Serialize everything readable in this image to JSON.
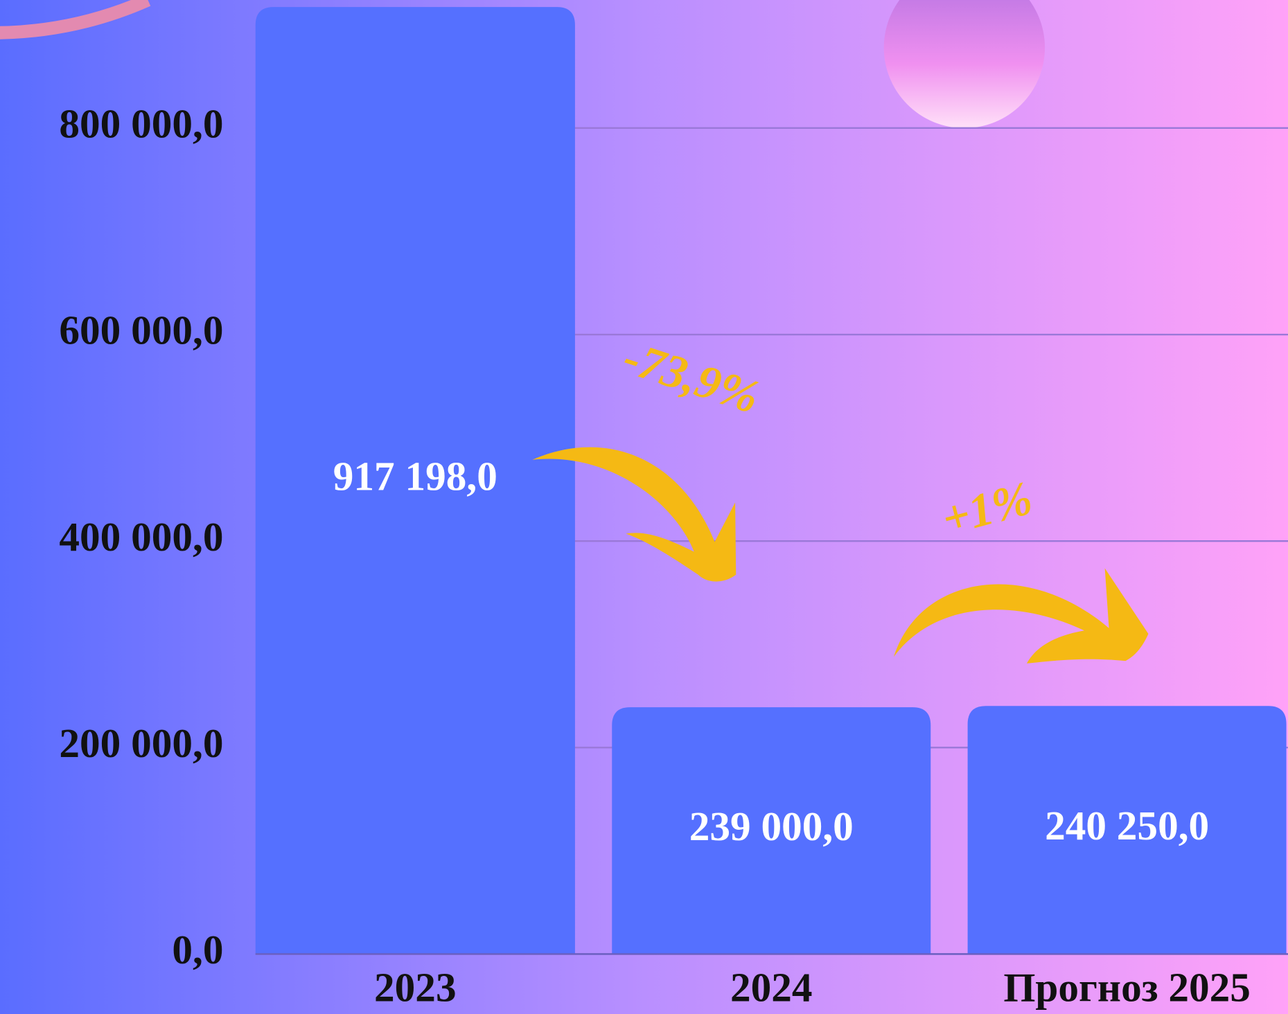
{
  "chart_data": {
    "type": "bar",
    "categories": [
      "2023",
      "2024",
      "Прогноз 2025"
    ],
    "values": [
      917198,
      239000,
      240250
    ],
    "value_labels": [
      "917 198,0",
      "239 000,0",
      "240 250,0"
    ],
    "color": "#5570ff",
    "ylim": [
      0,
      924000
    ],
    "yticks": [
      {
        "value": 0,
        "label": "0,0"
      },
      {
        "value": 200000,
        "label": "200 000,0"
      },
      {
        "value": 400000,
        "label": "400 000,0"
      },
      {
        "value": 600000,
        "label": "600 000,0"
      },
      {
        "value": 800000,
        "label": "800 000,0"
      }
    ],
    "grid": true,
    "annotations": [
      "-73,9%",
      "+1%"
    ]
  }
}
